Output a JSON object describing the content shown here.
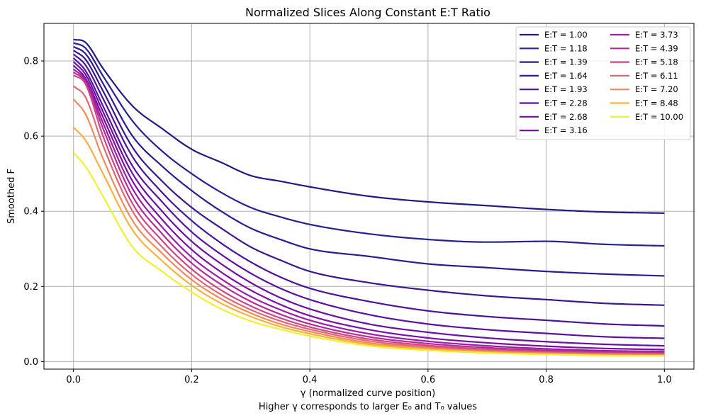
{
  "chart_data": {
    "type": "line",
    "title": "Normalized Slices Along Constant E:T Ratio",
    "xlabel": "γ (normalized curve position)",
    "xlabel_sub": "Higher γ corresponds to larger E₀ and T₀ values",
    "ylabel": "Smoothed F",
    "xlim": [
      -0.05,
      1.05
    ],
    "ylim": [
      -0.02,
      0.9
    ],
    "xticks": [
      0.0,
      0.2,
      0.4,
      0.6,
      0.8,
      1.0
    ],
    "xtick_labels": [
      "0.0",
      "0.2",
      "0.4",
      "0.6",
      "0.8",
      "1.0"
    ],
    "yticks": [
      0.0,
      0.2,
      0.4,
      0.6,
      0.8
    ],
    "ytick_labels": [
      "0.0",
      "0.2",
      "0.4",
      "0.6",
      "0.8"
    ],
    "grid": true,
    "legend_position": "top-right",
    "legend_columns": 2,
    "x": [
      0.0,
      0.02,
      0.05,
      0.1,
      0.15,
      0.2,
      0.25,
      0.3,
      0.35,
      0.4,
      0.5,
      0.6,
      0.7,
      0.8,
      0.9,
      1.0
    ],
    "series": [
      {
        "name": "E:T = 1.00",
        "color": "#221a85",
        "values": [
          0.857,
          0.85,
          0.78,
          0.68,
          0.62,
          0.565,
          0.53,
          0.495,
          0.48,
          0.465,
          0.44,
          0.425,
          0.415,
          0.405,
          0.398,
          0.395
        ]
      },
      {
        "name": "E:T = 1.18",
        "color": "#262190",
        "values": [
          0.848,
          0.835,
          0.76,
          0.64,
          0.56,
          0.5,
          0.45,
          0.41,
          0.385,
          0.365,
          0.34,
          0.325,
          0.318,
          0.32,
          0.312,
          0.308
        ]
      },
      {
        "name": "E:T = 1.39",
        "color": "#2d1a8f",
        "values": [
          0.838,
          0.82,
          0.74,
          0.6,
          0.52,
          0.455,
          0.4,
          0.355,
          0.325,
          0.3,
          0.28,
          0.26,
          0.25,
          0.24,
          0.233,
          0.228
        ]
      },
      {
        "name": "E:T = 1.64",
        "color": "#3a168f",
        "values": [
          0.828,
          0.805,
          0.72,
          0.57,
          0.48,
          0.41,
          0.355,
          0.305,
          0.27,
          0.24,
          0.21,
          0.19,
          0.175,
          0.165,
          0.155,
          0.15
        ]
      },
      {
        "name": "E:T = 1.93",
        "color": "#4a139b",
        "values": [
          0.818,
          0.79,
          0.7,
          0.545,
          0.45,
          0.375,
          0.315,
          0.265,
          0.225,
          0.195,
          0.16,
          0.135,
          0.12,
          0.11,
          0.1,
          0.095
        ]
      },
      {
        "name": "E:T = 2.28",
        "color": "#5a11a0",
        "values": [
          0.808,
          0.775,
          0.68,
          0.52,
          0.425,
          0.345,
          0.285,
          0.235,
          0.195,
          0.165,
          0.125,
          0.1,
          0.085,
          0.075,
          0.066,
          0.062
        ]
      },
      {
        "name": "E:T = 2.68",
        "color": "#6a10a3",
        "values": [
          0.798,
          0.765,
          0.665,
          0.5,
          0.4,
          0.32,
          0.26,
          0.21,
          0.17,
          0.14,
          0.1,
          0.078,
          0.063,
          0.053,
          0.046,
          0.042
        ]
      },
      {
        "name": "E:T = 3.16",
        "color": "#7e0ea6",
        "values": [
          0.788,
          0.755,
          0.65,
          0.48,
          0.378,
          0.298,
          0.238,
          0.19,
          0.152,
          0.122,
          0.085,
          0.063,
          0.05,
          0.041,
          0.035,
          0.032
        ]
      },
      {
        "name": "E:T = 3.73",
        "color": "#9a1ea6",
        "values": [
          0.778,
          0.75,
          0.635,
          0.46,
          0.358,
          0.278,
          0.22,
          0.173,
          0.138,
          0.11,
          0.074,
          0.054,
          0.042,
          0.034,
          0.029,
          0.027
        ]
      },
      {
        "name": "E:T = 4.39",
        "color": "#b42c96",
        "values": [
          0.77,
          0.745,
          0.62,
          0.44,
          0.34,
          0.262,
          0.205,
          0.16,
          0.126,
          0.1,
          0.066,
          0.048,
          0.037,
          0.03,
          0.026,
          0.024
        ]
      },
      {
        "name": "E:T = 5.18",
        "color": "#cc4586",
        "values": [
          0.762,
          0.74,
          0.6,
          0.42,
          0.322,
          0.246,
          0.19,
          0.148,
          0.116,
          0.092,
          0.06,
          0.043,
          0.033,
          0.027,
          0.023,
          0.021
        ]
      },
      {
        "name": "E:T = 6.11",
        "color": "#e06676",
        "values": [
          0.733,
          0.705,
          0.575,
          0.4,
          0.305,
          0.232,
          0.178,
          0.138,
          0.108,
          0.086,
          0.055,
          0.039,
          0.03,
          0.024,
          0.021,
          0.019
        ]
      },
      {
        "name": "E:T = 7.20",
        "color": "#f08a5a",
        "values": [
          0.698,
          0.66,
          0.54,
          0.375,
          0.288,
          0.218,
          0.167,
          0.129,
          0.1,
          0.08,
          0.05,
          0.036,
          0.027,
          0.022,
          0.019,
          0.018
        ]
      },
      {
        "name": "E:T = 8.48",
        "color": "#f9b13e",
        "values": [
          0.623,
          0.59,
          0.5,
          0.35,
          0.268,
          0.203,
          0.155,
          0.12,
          0.093,
          0.074,
          0.046,
          0.033,
          0.025,
          0.02,
          0.017,
          0.016
        ]
      },
      {
        "name": "E:T = 10.00",
        "color": "#f0f02f",
        "values": [
          0.556,
          0.52,
          0.44,
          0.305,
          0.24,
          0.185,
          0.14,
          0.108,
          0.086,
          0.068,
          0.042,
          0.03,
          0.023,
          0.019,
          0.016,
          0.015
        ]
      }
    ]
  }
}
